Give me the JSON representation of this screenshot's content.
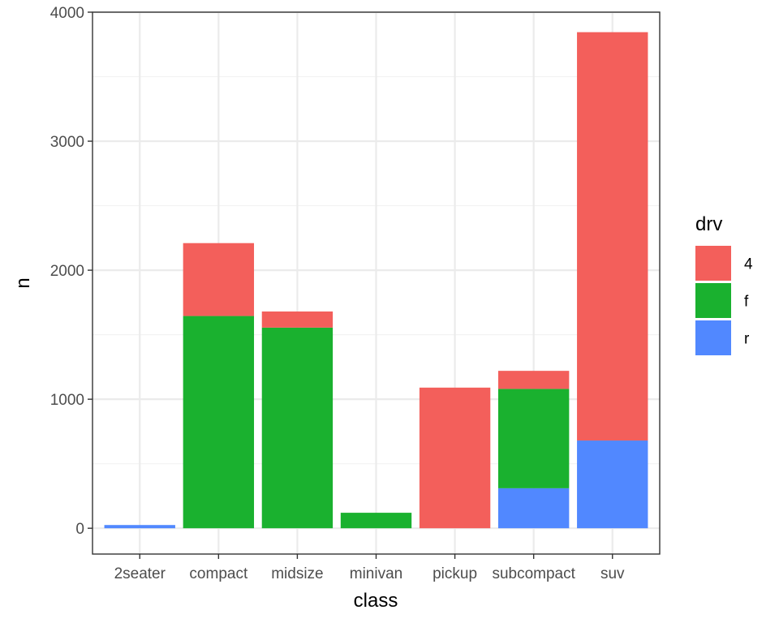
{
  "chart_data": {
    "type": "bar",
    "stacked": true,
    "title": "",
    "xlabel": "class",
    "ylabel": "n",
    "categories": [
      "2seater",
      "compact",
      "midsize",
      "minivan",
      "pickup",
      "subcompact",
      "suv"
    ],
    "ylim": [
      -200,
      4000
    ],
    "yticks": [
      0,
      1000,
      2000,
      3000,
      4000
    ],
    "ytick_labels": [
      "0",
      "1000",
      "2000",
      "3000",
      "4000"
    ],
    "grid": true,
    "legend": {
      "title": "drv",
      "position": "right",
      "entries": [
        {
          "label": "4",
          "color": "#F8766D"
        },
        {
          "label": "f",
          "color": "#1AB12F"
        },
        {
          "label": "r",
          "color": "#619CFF"
        }
      ]
    },
    "stack_order_bottom_to_top": [
      "r",
      "f",
      "4"
    ],
    "series": [
      {
        "name": "4",
        "color": "#F35F5B",
        "values": [
          0,
          565,
          125,
          0,
          1090,
          140,
          3165
        ]
      },
      {
        "name": "f",
        "color": "#1AB12F",
        "values": [
          0,
          1645,
          1555,
          120,
          0,
          770,
          0
        ]
      },
      {
        "name": "r",
        "color": "#5188FF",
        "values": [
          25,
          0,
          0,
          0,
          0,
          310,
          680
        ]
      }
    ]
  }
}
